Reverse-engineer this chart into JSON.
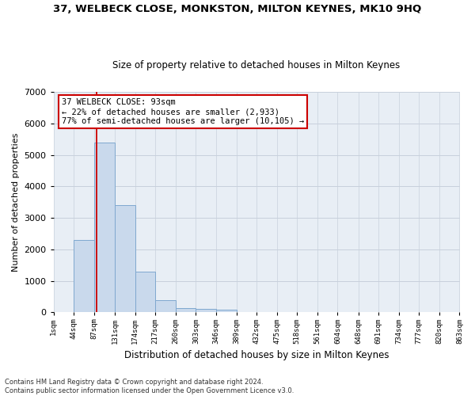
{
  "title": "37, WELBECK CLOSE, MONKSTON, MILTON KEYNES, MK10 9HQ",
  "subtitle": "Size of property relative to detached houses in Milton Keynes",
  "xlabel": "Distribution of detached houses by size in Milton Keynes",
  "ylabel": "Number of detached properties",
  "footnote": "Contains HM Land Registry data © Crown copyright and database right 2024.\nContains public sector information licensed under the Open Government Licence v3.0.",
  "bar_edges": [
    1,
    44,
    87,
    131,
    174,
    217,
    260,
    303,
    346,
    389,
    432,
    475,
    518,
    561,
    604,
    648,
    691,
    734,
    777,
    820,
    863
  ],
  "bar_heights": [
    0,
    2300,
    5400,
    3400,
    1300,
    400,
    150,
    100,
    90,
    0,
    0,
    0,
    0,
    0,
    0,
    0,
    0,
    0,
    0,
    0
  ],
  "bar_color": "#c9d9ec",
  "bar_edgecolor": "#7fa8cf",
  "grid_color": "#c8d0dc",
  "bg_color": "#e8eef5",
  "red_line_x": 93,
  "annotation_line1": "37 WELBECK CLOSE: 93sqm",
  "annotation_line2": "← 22% of detached houses are smaller (2,933)",
  "annotation_line3": "77% of semi-detached houses are larger (10,105) →",
  "annotation_box_facecolor": "#ffffff",
  "annotation_box_edgecolor": "#cc0000",
  "ylim": [
    0,
    7000
  ],
  "yticks": [
    0,
    1000,
    2000,
    3000,
    4000,
    5000,
    6000,
    7000
  ]
}
